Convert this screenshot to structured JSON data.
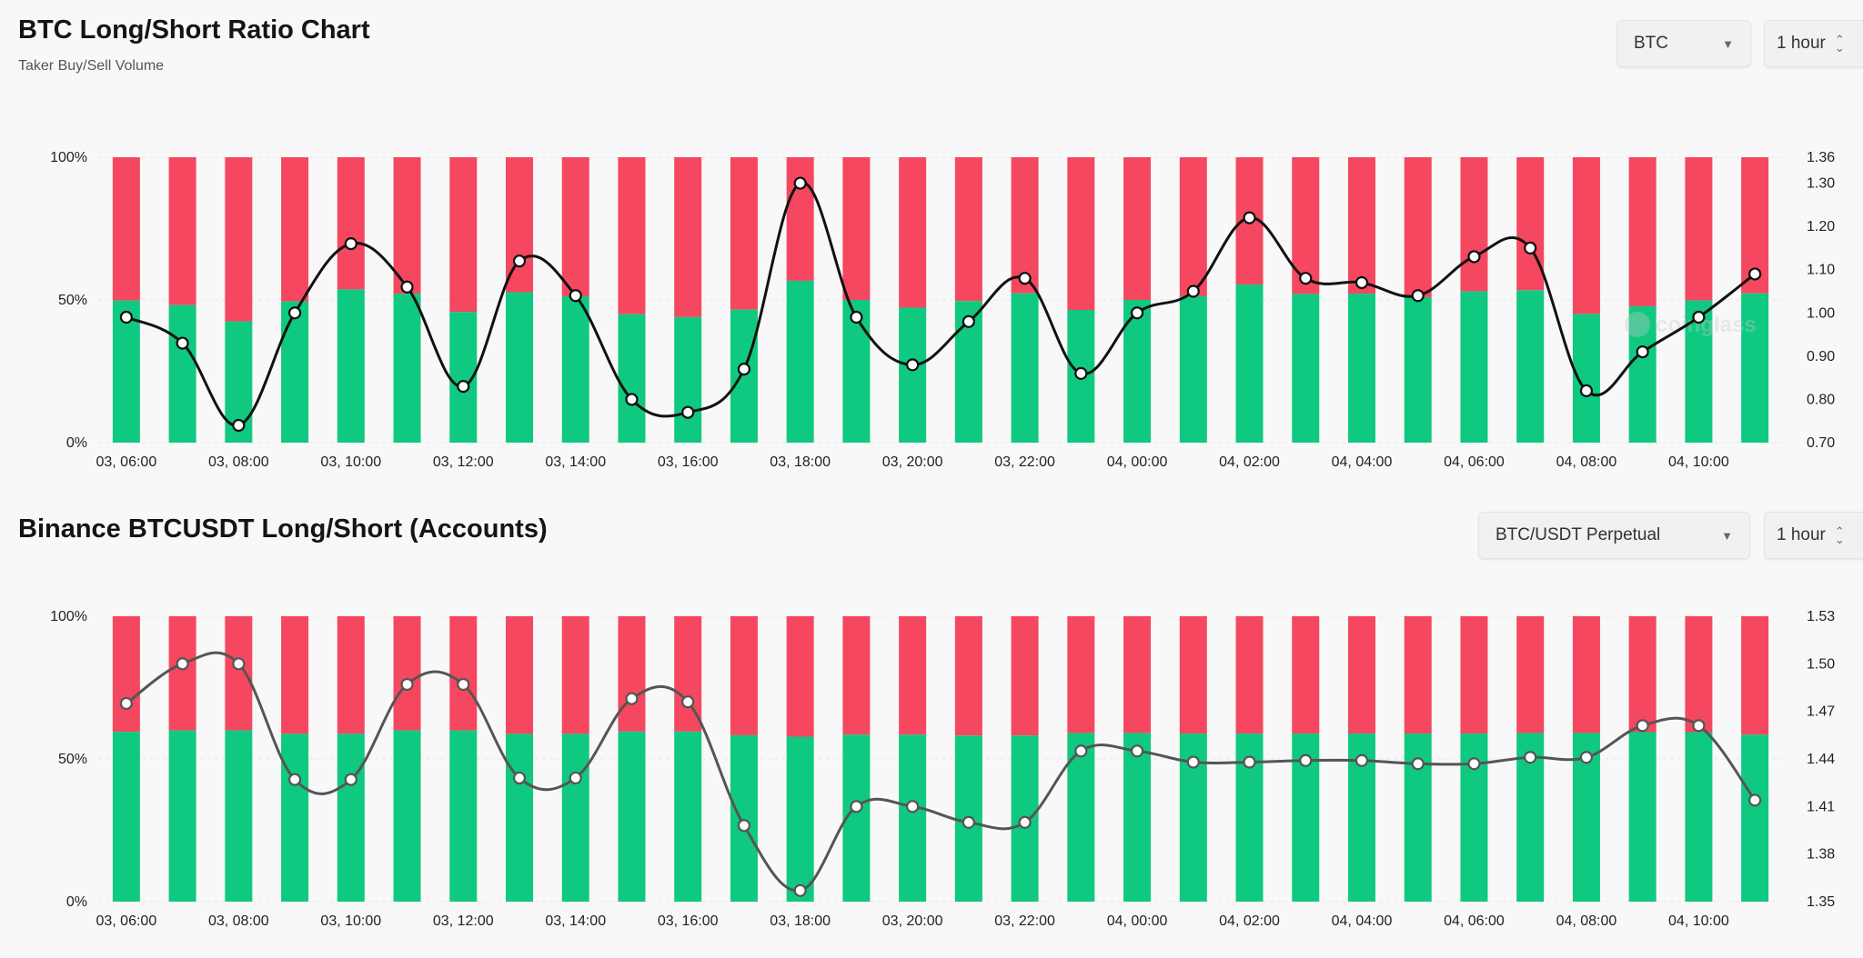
{
  "chart1": {
    "title": "BTC Long/Short Ratio Chart",
    "subtitle": "Taker Buy/Sell Volume",
    "symbol_select": "BTC",
    "interval_select": "1 hour",
    "watermark": "coinglass"
  },
  "chart2": {
    "title": "Binance BTCUSDT Long/Short (Accounts)",
    "pair_select": "BTC/USDT Perpetual",
    "interval_select": "1 hour"
  },
  "colors": {
    "long": "#10c981",
    "short": "#f5475f",
    "line1": "#111111",
    "line2": "#555555"
  },
  "chart_data": [
    {
      "type": "bar",
      "title": "BTC Long/Short Ratio Chart",
      "subtitle": "Taker Buy/Sell Volume",
      "stacked": true,
      "categories": [
        "03, 06:00",
        "03, 07:00",
        "03, 08:00",
        "03, 09:00",
        "03, 10:00",
        "03, 11:00",
        "03, 12:00",
        "03, 13:00",
        "03, 14:00",
        "03, 15:00",
        "03, 16:00",
        "03, 17:00",
        "03, 18:00",
        "03, 19:00",
        "03, 20:00",
        "03, 21:00",
        "03, 22:00",
        "03, 23:00",
        "04, 00:00",
        "04, 01:00",
        "04, 02:00",
        "04, 03:00",
        "04, 04:00",
        "04, 05:00",
        "04, 06:00",
        "04, 07:00",
        "04, 08:00",
        "04, 09:00",
        "04, 10:00",
        "04, 11:00"
      ],
      "x_tick_labels": [
        "03, 06:00",
        "03, 08:00",
        "03, 10:00",
        "03, 12:00",
        "03, 14:00",
        "03, 16:00",
        "03, 18:00",
        "03, 20:00",
        "03, 22:00",
        "04, 00:00",
        "04, 02:00",
        "04, 04:00",
        "04, 06:00",
        "04, 08:00",
        "04, 10:00"
      ],
      "series": [
        {
          "name": "Long %",
          "axis": "left",
          "values": [
            49.8,
            48.2,
            42.5,
            49.5,
            53.7,
            52.2,
            45.8,
            52.7,
            51.3,
            45.0,
            44.0,
            46.6,
            56.7,
            50.0,
            47.3,
            49.6,
            52.3,
            46.5,
            50.0,
            51.3,
            55.4,
            52.1,
            52.2,
            51.0,
            53.0,
            53.4,
            45.1,
            47.8,
            49.8,
            52.3
          ]
        },
        {
          "name": "Short %",
          "axis": "left",
          "values": [
            50.2,
            51.8,
            57.5,
            50.5,
            46.3,
            47.8,
            54.2,
            47.3,
            48.7,
            55.0,
            56.0,
            53.4,
            43.3,
            50.0,
            52.7,
            50.4,
            47.7,
            53.5,
            50.0,
            48.7,
            44.6,
            47.9,
            47.8,
            49.0,
            47.0,
            46.6,
            54.9,
            52.2,
            50.2,
            47.7
          ]
        },
        {
          "name": "Long/Short Ratio",
          "type": "line",
          "axis": "right",
          "values": [
            0.99,
            0.93,
            0.74,
            1.0,
            1.16,
            1.06,
            0.83,
            1.12,
            1.04,
            0.8,
            0.77,
            0.87,
            1.3,
            0.99,
            0.88,
            0.98,
            1.08,
            0.86,
            1.0,
            1.05,
            1.22,
            1.08,
            1.07,
            1.04,
            1.13,
            1.15,
            0.82,
            0.91,
            0.99,
            1.09
          ]
        }
      ],
      "y_left": {
        "ticks": [
          "0%",
          "50%",
          "100%"
        ],
        "ylim": [
          0,
          100
        ]
      },
      "y_right": {
        "ticks": [
          "0.70",
          "0.80",
          "0.90",
          "1.00",
          "1.10",
          "1.20",
          "1.30",
          "1.36"
        ],
        "ylim": [
          0.7,
          1.36
        ]
      }
    },
    {
      "type": "bar",
      "title": "Binance BTCUSDT Long/Short (Accounts)",
      "stacked": true,
      "categories": [
        "03, 06:00",
        "03, 07:00",
        "03, 08:00",
        "03, 09:00",
        "03, 10:00",
        "03, 11:00",
        "03, 12:00",
        "03, 13:00",
        "03, 14:00",
        "03, 15:00",
        "03, 16:00",
        "03, 17:00",
        "03, 18:00",
        "03, 19:00",
        "03, 20:00",
        "03, 21:00",
        "03, 22:00",
        "03, 23:00",
        "04, 00:00",
        "04, 01:00",
        "04, 02:00",
        "04, 03:00",
        "04, 04:00",
        "04, 05:00",
        "04, 06:00",
        "04, 07:00",
        "04, 08:00",
        "04, 09:00",
        "04, 10:00",
        "04, 11:00"
      ],
      "x_tick_labels": [
        "03, 06:00",
        "03, 08:00",
        "03, 10:00",
        "03, 12:00",
        "03, 14:00",
        "03, 16:00",
        "03, 18:00",
        "03, 20:00",
        "03, 22:00",
        "04, 00:00",
        "04, 02:00",
        "04, 04:00",
        "04, 06:00",
        "04, 08:00",
        "04, 10:00"
      ],
      "series": [
        {
          "name": "Long %",
          "axis": "left",
          "values": [
            59.5,
            60.0,
            60.0,
            58.8,
            58.8,
            60.0,
            60.0,
            58.8,
            58.8,
            59.6,
            59.6,
            58.3,
            57.8,
            58.5,
            58.5,
            58.2,
            58.2,
            59.1,
            59.1,
            58.9,
            58.9,
            58.9,
            58.9,
            58.9,
            58.9,
            59.1,
            59.1,
            59.4,
            59.4,
            58.5
          ]
        },
        {
          "name": "Short %",
          "axis": "left",
          "values": [
            40.5,
            40.0,
            40.0,
            41.2,
            41.2,
            40.0,
            40.0,
            41.2,
            41.2,
            40.4,
            40.4,
            41.7,
            42.2,
            41.5,
            41.5,
            41.8,
            41.8,
            40.9,
            40.9,
            41.1,
            41.1,
            41.1,
            41.1,
            41.1,
            41.1,
            40.9,
            40.9,
            40.6,
            40.6,
            41.5
          ]
        },
        {
          "name": "Long/Short Ratio",
          "type": "line",
          "axis": "right",
          "values": [
            1.475,
            1.5,
            1.5,
            1.427,
            1.427,
            1.487,
            1.487,
            1.428,
            1.428,
            1.478,
            1.476,
            1.398,
            1.357,
            1.41,
            1.41,
            1.4,
            1.4,
            1.445,
            1.445,
            1.438,
            1.438,
            1.439,
            1.439,
            1.437,
            1.437,
            1.441,
            1.441,
            1.461,
            1.461,
            1.414
          ]
        }
      ],
      "y_left": {
        "ticks": [
          "0%",
          "50%",
          "100%"
        ],
        "ylim": [
          0,
          100
        ]
      },
      "y_right": {
        "ticks": [
          "1.35",
          "1.38",
          "1.41",
          "1.44",
          "1.47",
          "1.50",
          "1.53"
        ],
        "ylim": [
          1.35,
          1.53
        ]
      }
    }
  ]
}
